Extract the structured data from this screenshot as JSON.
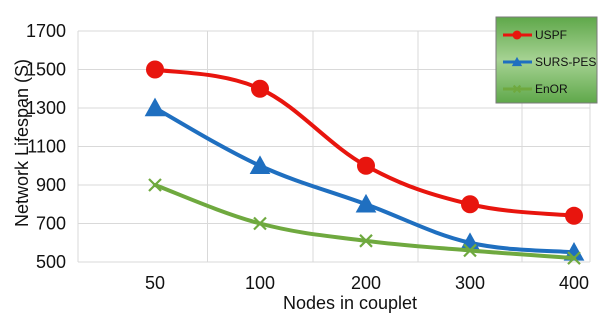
{
  "chart_data": {
    "type": "line",
    "title": "",
    "xlabel": "Nodes in couplet",
    "ylabel": "Network Lifespan (S)",
    "categories": [
      "50",
      "100",
      "200",
      "300",
      "400"
    ],
    "ylim": [
      500,
      1700
    ],
    "yticks": [
      "500",
      "700",
      "900",
      "1100",
      "1300",
      "1500",
      "1700"
    ],
    "grid": true,
    "legend_position": "top-right",
    "series": [
      {
        "name": "USPF",
        "values": [
          1500,
          1400,
          1000,
          800,
          740
        ],
        "color": "#e8150e",
        "marker": "circle"
      },
      {
        "name": "SURS-PES",
        "values": [
          1300,
          1000,
          800,
          600,
          550
        ],
        "color": "#1f6fc0",
        "marker": "triangle"
      },
      {
        "name": "EnOR",
        "values": [
          900,
          700,
          610,
          560,
          520
        ],
        "color": "#6fa93f",
        "marker": "x"
      }
    ],
    "legend_background": "#8fc77a"
  }
}
